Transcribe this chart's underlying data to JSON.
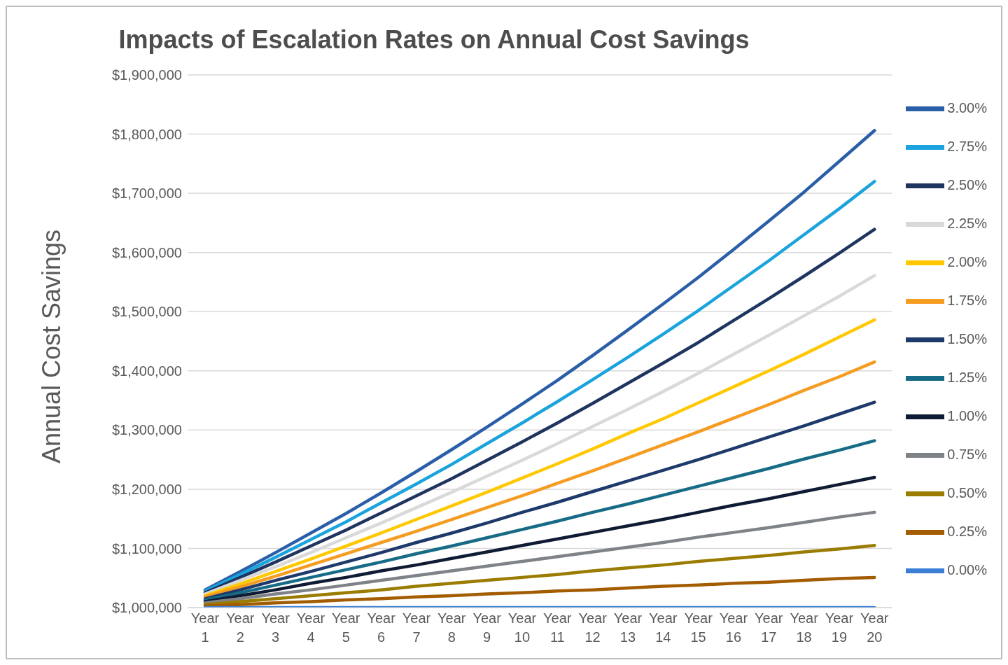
{
  "chart_data": {
    "type": "line",
    "title": "Impacts of Escalation Rates on Annual Cost Savings",
    "ylabel": "Annual Cost Savings",
    "categories": [
      "Year 1",
      "Year 2",
      "Year 3",
      "Year 4",
      "Year 5",
      "Year 6",
      "Year 7",
      "Year 8",
      "Year 9",
      "Year 10",
      "Year 11",
      "Year 12",
      "Year 13",
      "Year 14",
      "Year 15",
      "Year 16",
      "Year 17",
      "Year 18",
      "Year 19",
      "Year 20"
    ],
    "ylim": [
      1000000,
      1900000
    ],
    "yticks": [
      {
        "value": 1000000,
        "label": "$1,000,000"
      },
      {
        "value": 1100000,
        "label": "$1,100,000"
      },
      {
        "value": 1200000,
        "label": "$1,200,000"
      },
      {
        "value": 1300000,
        "label": "$1,300,000"
      },
      {
        "value": 1400000,
        "label": "$1,400,000"
      },
      {
        "value": 1500000,
        "label": "$1,500,000"
      },
      {
        "value": 1600000,
        "label": "$1,600,000"
      },
      {
        "value": 1700000,
        "label": "$1,700,000"
      },
      {
        "value": 1800000,
        "label": "$1,800,000"
      },
      {
        "value": 1900000,
        "label": "$1,900,000"
      }
    ],
    "grid": "y",
    "legend": "right",
    "marker": "none",
    "line_style": "solid",
    "series": [
      {
        "name": "3.00%",
        "color": "#2a5ea8",
        "values": [
          1030000,
          1061000,
          1093000,
          1126000,
          1159000,
          1194000,
          1230000,
          1267000,
          1305000,
          1344000,
          1384000,
          1426000,
          1469000,
          1513000,
          1558000,
          1605000,
          1653000,
          1702000,
          1754000,
          1806000
        ]
      },
      {
        "name": "2.75%",
        "color": "#1aa3dc",
        "values": [
          1028000,
          1056000,
          1085000,
          1115000,
          1145000,
          1177000,
          1209000,
          1242000,
          1277000,
          1312000,
          1348000,
          1385000,
          1423000,
          1462000,
          1502000,
          1544000,
          1586000,
          1630000,
          1674000,
          1720000
        ]
      },
      {
        "name": "2.50%",
        "color": "#1f3560",
        "values": [
          1025000,
          1051000,
          1077000,
          1104000,
          1131000,
          1160000,
          1189000,
          1218000,
          1249000,
          1280000,
          1312000,
          1345000,
          1379000,
          1413000,
          1448000,
          1485000,
          1522000,
          1560000,
          1599000,
          1639000
        ]
      },
      {
        "name": "2.25%",
        "color": "#d9d9d9",
        "values": [
          1023000,
          1046000,
          1069000,
          1093000,
          1118000,
          1143000,
          1169000,
          1195000,
          1222000,
          1249000,
          1277000,
          1306000,
          1335000,
          1365000,
          1396000,
          1428000,
          1460000,
          1493000,
          1526000,
          1561000
        ]
      },
      {
        "name": "2.00%",
        "color": "#ffc800",
        "values": [
          1020000,
          1040000,
          1061000,
          1082000,
          1104000,
          1126000,
          1149000,
          1172000,
          1195000,
          1219000,
          1243000,
          1268000,
          1294000,
          1319000,
          1346000,
          1373000,
          1400000,
          1428000,
          1457000,
          1486000
        ]
      },
      {
        "name": "1.75%",
        "color": "#f59c22",
        "values": [
          1018000,
          1035000,
          1053000,
          1072000,
          1091000,
          1110000,
          1129000,
          1149000,
          1169000,
          1189000,
          1210000,
          1231000,
          1253000,
          1275000,
          1297000,
          1320000,
          1343000,
          1367000,
          1390000,
          1415000
        ]
      },
      {
        "name": "1.50%",
        "color": "#1e3a6b",
        "values": [
          1015000,
          1030000,
          1046000,
          1061000,
          1077000,
          1093000,
          1110000,
          1126000,
          1143000,
          1161000,
          1178000,
          1196000,
          1214000,
          1232000,
          1250000,
          1269000,
          1288000,
          1307000,
          1327000,
          1347000
        ]
      },
      {
        "name": "1.25%",
        "color": "#176b86",
        "values": [
          1013000,
          1025000,
          1038000,
          1051000,
          1064000,
          1077000,
          1091000,
          1104000,
          1118000,
          1132000,
          1146000,
          1161000,
          1175000,
          1190000,
          1205000,
          1220000,
          1235000,
          1251000,
          1266000,
          1282000
        ]
      },
      {
        "name": "1.00%",
        "color": "#0f1a33",
        "values": [
          1010000,
          1020000,
          1030000,
          1041000,
          1051000,
          1062000,
          1072000,
          1083000,
          1094000,
          1105000,
          1116000,
          1127000,
          1138000,
          1149000,
          1161000,
          1173000,
          1184000,
          1196000,
          1208000,
          1220000
        ]
      },
      {
        "name": "0.75%",
        "color": "#7f8387",
        "values": [
          1008000,
          1015000,
          1023000,
          1030000,
          1038000,
          1046000,
          1054000,
          1062000,
          1070000,
          1078000,
          1086000,
          1094000,
          1102000,
          1110000,
          1119000,
          1127000,
          1135000,
          1144000,
          1153000,
          1161000
        ]
      },
      {
        "name": "0.50%",
        "color": "#9a7c00",
        "values": [
          1005000,
          1010000,
          1015000,
          1020000,
          1025000,
          1030000,
          1036000,
          1041000,
          1046000,
          1051000,
          1056000,
          1062000,
          1067000,
          1072000,
          1078000,
          1083000,
          1088000,
          1094000,
          1099000,
          1105000
        ]
      },
      {
        "name": "0.25%",
        "color": "#a35c00",
        "values": [
          1003000,
          1005000,
          1008000,
          1010000,
          1013000,
          1015000,
          1018000,
          1020000,
          1023000,
          1025000,
          1028000,
          1030000,
          1033000,
          1036000,
          1038000,
          1041000,
          1043000,
          1046000,
          1049000,
          1051000
        ]
      },
      {
        "name": "0.00%",
        "color": "#3a7fd5",
        "values": [
          1000000,
          1000000,
          1000000,
          1000000,
          1000000,
          1000000,
          1000000,
          1000000,
          1000000,
          1000000,
          1000000,
          1000000,
          1000000,
          1000000,
          1000000,
          1000000,
          1000000,
          1000000,
          1000000,
          1000000
        ]
      }
    ]
  }
}
